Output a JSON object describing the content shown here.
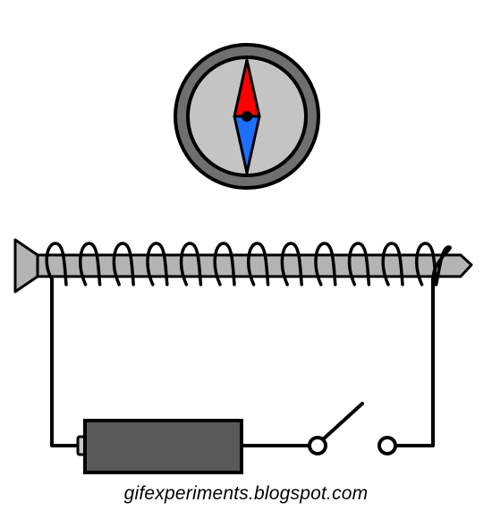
{
  "credit": {
    "text": "gifexperiments.blogspot.com"
  },
  "colors": {
    "compass_ring": "#6f6f6f",
    "compass_face": "#c4c4c4",
    "needle_north": "#ff0000",
    "needle_south": "#1e6fff",
    "screw": "#b4b4b4",
    "battery": "#595959",
    "battery_terminal": "#c8c8c8",
    "wire": "#000000"
  },
  "icons": {
    "compass": "compass-icon",
    "screw": "screw-core",
    "coil": "wire-coil",
    "battery": "battery-icon",
    "switch": "open-switch-icon"
  },
  "state": {
    "switch": "open"
  }
}
